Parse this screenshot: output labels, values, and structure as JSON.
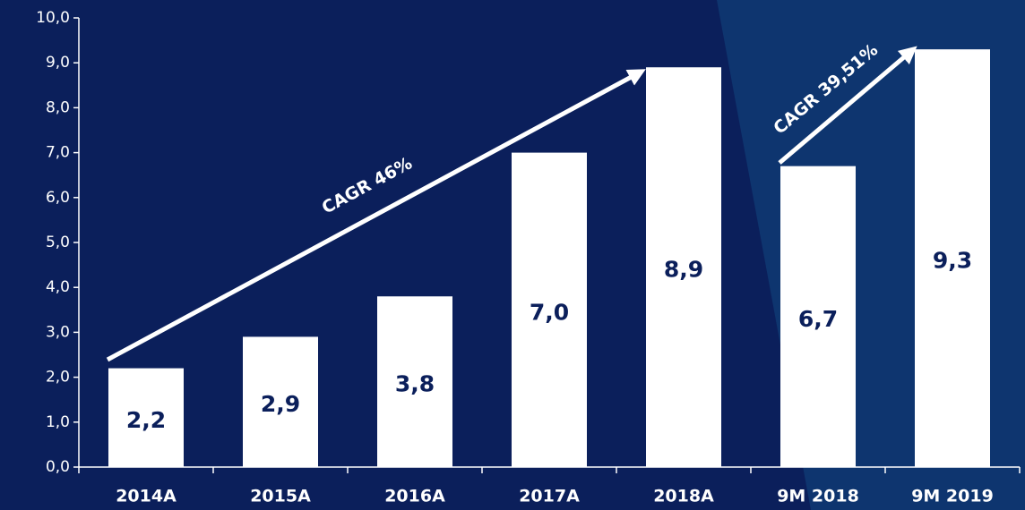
{
  "chart_data": {
    "type": "bar",
    "categories": [
      "2014A",
      "2015A",
      "2016A",
      "2017A",
      "2018A",
      "9M 2018",
      "9M 2019"
    ],
    "values": [
      2.2,
      2.9,
      3.8,
      7.0,
      8.9,
      6.7,
      9.3
    ],
    "value_labels": [
      "2,2",
      "2,9",
      "3,8",
      "7,0",
      "8,9",
      "6,7",
      "9,3"
    ],
    "color": "#ffffff",
    "ylim": [
      0,
      10
    ],
    "yticks": [
      {
        "value": 0,
        "label": "0,0"
      },
      {
        "value": 1,
        "label": "1,0"
      },
      {
        "value": 2,
        "label": "2,0"
      },
      {
        "value": 3,
        "label": "3,0"
      },
      {
        "value": 4,
        "label": "4,0"
      },
      {
        "value": 5,
        "label": "5,0"
      },
      {
        "value": 6,
        "label": "6,0"
      },
      {
        "value": 7,
        "label": "7,0"
      },
      {
        "value": 8,
        "label": "8,0"
      },
      {
        "value": 9,
        "label": "9,0"
      },
      {
        "value": 10,
        "label": "10,0"
      }
    ],
    "annotations": [
      "CAGR 46%",
      "CAGR 39,51%"
    ]
  }
}
